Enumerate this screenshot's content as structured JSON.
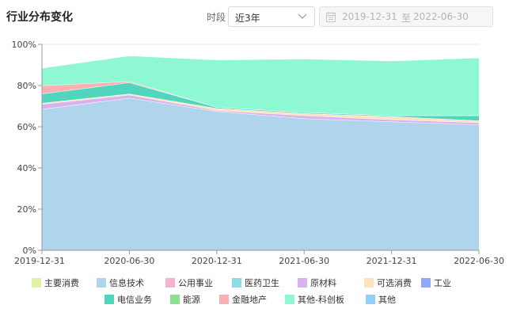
{
  "header": {
    "title": "行业分布变化",
    "period_label": "时段",
    "period_value": "近3年",
    "date_start": "2019-12-31",
    "date_sep": "至",
    "date_end": "2022-06-30"
  },
  "chart_data": {
    "type": "area",
    "stacked": true,
    "categories": [
      "2019-12-31",
      "2020-06-30",
      "2020-12-31",
      "2021-06-30",
      "2021-12-31",
      "2022-06-30"
    ],
    "ylim": [
      0,
      100
    ],
    "ytick_labels": [
      "0%",
      "20%",
      "40%",
      "60%",
      "80%",
      "100%"
    ],
    "legend_position": "bottom",
    "series": [
      {
        "name": "信息技术",
        "color": "#b0d4ec",
        "values": [
          68.5,
          74,
          67.5,
          64,
          62.5,
          61
        ]
      },
      {
        "name": "原材料",
        "color": "#d9b3f0",
        "values": [
          2.5,
          1.5,
          0.5,
          1.5,
          1,
          1
        ]
      },
      {
        "name": "可选消费",
        "color": "#fde2bd",
        "values": [
          0.5,
          0.5,
          1,
          1,
          1.5,
          1
        ]
      },
      {
        "name": "电信业务",
        "color": "#51d6be",
        "values": [
          4.5,
          5.5,
          0.5,
          0.5,
          0.5,
          2.5
        ]
      },
      {
        "name": "金融地产",
        "color": "#f9b1b1",
        "values": [
          4,
          0.5,
          0,
          0,
          0,
          0
        ]
      },
      {
        "name": "其他-科创板",
        "color": "#8ef8d3",
        "values": [
          8.5,
          12.5,
          23,
          26,
          26.5,
          28
        ]
      }
    ],
    "legend": [
      {
        "name": "主要消费",
        "color": "#dff3a8"
      },
      {
        "name": "信息技术",
        "color": "#b0d4ec"
      },
      {
        "name": "公用事业",
        "color": "#f8b2cd"
      },
      {
        "name": "医药卫生",
        "color": "#8fdce4"
      },
      {
        "name": "原材料",
        "color": "#d9b3f0"
      },
      {
        "name": "可选消费",
        "color": "#fde2bd"
      },
      {
        "name": "工业",
        "color": "#8fa9f5"
      },
      {
        "name": "电信业务",
        "color": "#51d6be"
      },
      {
        "name": "能源",
        "color": "#8ce08f"
      },
      {
        "name": "金融地产",
        "color": "#f9b1b1"
      },
      {
        "name": "其他-科创板",
        "color": "#8ef8d3"
      },
      {
        "name": "其他",
        "color": "#8fd0f8"
      }
    ]
  }
}
